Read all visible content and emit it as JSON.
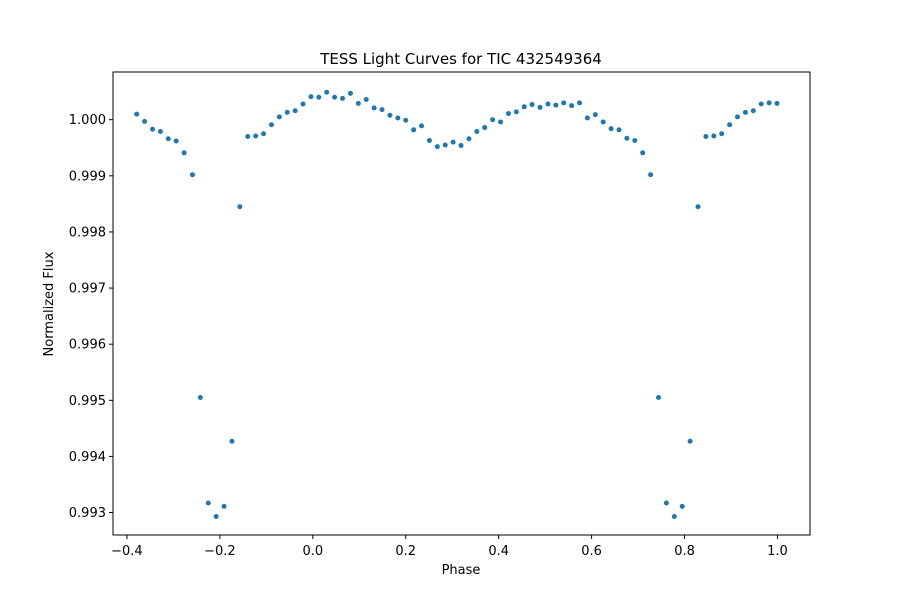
{
  "chart_data": {
    "type": "scatter",
    "title": "TESS Light Curves for TIC 432549364",
    "xlabel": "Phase",
    "ylabel": "Normalized Flux",
    "xlim": [
      -0.43,
      1.07
    ],
    "ylim": [
      0.9926,
      1.00085
    ],
    "xticks": [
      -0.4,
      -0.2,
      0.0,
      0.2,
      0.4,
      0.6,
      0.8,
      1.0
    ],
    "xtick_labels": [
      "−0.4",
      "−0.2",
      "0.0",
      "0.2",
      "0.4",
      "0.6",
      "0.8",
      "1.0"
    ],
    "yticks": [
      0.993,
      0.994,
      0.995,
      0.996,
      0.997,
      0.998,
      0.999,
      1.0
    ],
    "ytick_labels": [
      "0.993",
      "0.994",
      "0.995",
      "0.996",
      "0.997",
      "0.998",
      "0.999",
      "1.000"
    ],
    "grid": false,
    "marker_color": "#1f77b4",
    "series": [
      {
        "x": [
          -0.379,
          -0.362,
          -0.345,
          -0.328,
          -0.311,
          -0.294,
          -0.277,
          -0.259,
          -0.242,
          -0.225,
          -0.208,
          -0.191,
          -0.174,
          -0.157,
          -0.14,
          -0.123,
          -0.106,
          -0.089,
          -0.072,
          -0.055,
          -0.038,
          -0.021,
          -0.004,
          0.013,
          0.03,
          0.047,
          0.064,
          0.081,
          0.098,
          0.115,
          0.132,
          0.149,
          0.166,
          0.183,
          0.2,
          0.217,
          0.234,
          0.251,
          0.268,
          0.285,
          0.302,
          0.319,
          0.336,
          0.353,
          0.37,
          0.387,
          0.404,
          0.421,
          0.438,
          0.455,
          0.472,
          0.489,
          0.506,
          0.523,
          0.54,
          0.557,
          0.574,
          0.591,
          0.608,
          0.625,
          0.642,
          0.659,
          0.676,
          0.693,
          0.71,
          0.727,
          0.744,
          0.761,
          0.778,
          0.795,
          0.812,
          0.829,
          0.846,
          0.863,
          0.88,
          0.897,
          0.914,
          0.931,
          0.948,
          0.965,
          0.982,
          0.999
        ],
        "y": [
          1.0001,
          0.99997,
          0.99983,
          0.99979,
          0.99966,
          0.99962,
          0.99941,
          0.99902,
          0.99505,
          0.99317,
          0.99293,
          0.99311,
          0.99427,
          0.99845,
          0.9997,
          0.99971,
          0.99975,
          0.99991,
          1.00005,
          1.00013,
          1.00016,
          1.00028,
          1.00041,
          1.0004,
          1.00049,
          1.0004,
          1.00038,
          1.00047,
          1.00029,
          1.00036,
          1.00021,
          1.00018,
          1.00008,
          1.00003,
          0.99999,
          0.99982,
          0.99989,
          0.99963,
          0.99952,
          0.99955,
          0.9996,
          0.99954,
          0.99966,
          0.99979,
          0.99986,
          1.0,
          0.99996,
          1.00011,
          1.00014,
          1.00023,
          1.00027,
          1.00022,
          1.00028,
          1.00026,
          1.0003,
          1.00025,
          1.0003,
          1.00003,
          1.00009,
          0.99996,
          0.99984,
          0.99982,
          0.99967,
          0.99963,
          0.99941,
          0.99902,
          0.99505,
          0.99317,
          0.99293,
          0.99311,
          0.99427,
          0.99845,
          0.9997,
          0.99971,
          0.99975,
          0.99991,
          1.00005,
          1.00013,
          1.00016,
          1.00028,
          1.0003,
          1.00029
        ]
      }
    ]
  }
}
